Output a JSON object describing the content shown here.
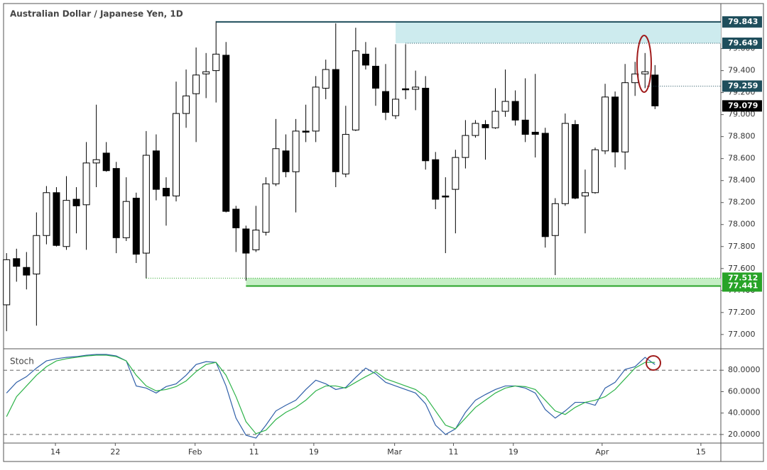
{
  "chart_data": [
    {
      "type": "candlestick",
      "title": "Australian Dollar / Japanese Yen, 1D",
      "xlim": [
        -0.3,
        71.6
      ],
      "xticks": [
        {
          "value": 4.9,
          "label": "14"
        },
        {
          "value": 10.9,
          "label": "22"
        },
        {
          "value": 18.9,
          "label": "Feb"
        },
        {
          "value": 24.8,
          "label": "11"
        },
        {
          "value": 30.8,
          "label": "19"
        },
        {
          "value": 38.9,
          "label": "Mar"
        },
        {
          "value": 44.8,
          "label": "11"
        },
        {
          "value": 50.8,
          "label": "19"
        },
        {
          "value": 59.7,
          "label": "Apr"
        },
        {
          "value": 69.6,
          "label": "15"
        }
      ],
      "ylim": [
        76.87,
        80.01
      ],
      "yticks": [
        {
          "value": 79.6,
          "label": "79.600"
        },
        {
          "value": 79.4,
          "label": "79.400"
        },
        {
          "value": 79.2,
          "label": "79.200"
        },
        {
          "value": 79.0,
          "label": "79.000"
        },
        {
          "value": 78.8,
          "label": "78.800"
        },
        {
          "value": 78.6,
          "label": "78.600"
        },
        {
          "value": 78.4,
          "label": "78.400"
        },
        {
          "value": 78.2,
          "label": "78.200"
        },
        {
          "value": 78.0,
          "label": "78.000"
        },
        {
          "value": 77.8,
          "label": "77.800"
        },
        {
          "value": 77.6,
          "label": "77.600"
        },
        {
          "value": 77.4,
          "label": "77.400"
        },
        {
          "value": 77.2,
          "label": "77.200"
        },
        {
          "value": 77.0,
          "label": "77.000"
        }
      ],
      "open": [
        77.27,
        77.69,
        77.61,
        77.55,
        77.9,
        78.29,
        77.8,
        78.23,
        78.18,
        78.56,
        78.65,
        78.51,
        77.88,
        78.24,
        77.74,
        78.67,
        78.33,
        78.26,
        79.01,
        79.19,
        79.37,
        79.4,
        79.54,
        78.14,
        77.96,
        77.77,
        77.93,
        78.37,
        78.67,
        78.48,
        78.85,
        78.85,
        79.24,
        79.41,
        78.46,
        78.86,
        79.55,
        79.44,
        79.21,
        78.99,
        79.235,
        79.23,
        79.24,
        78.59,
        78.26,
        78.32,
        78.61,
        78.81,
        78.91,
        78.88,
        79.03,
        79.12,
        78.95,
        78.84,
        78.83,
        77.9,
        78.19,
        78.91,
        78.26,
        78.29,
        78.67,
        79.16,
        78.66,
        79.29,
        79.37,
        79.36
      ],
      "high": [
        77.74,
        77.78,
        77.75,
        78.11,
        78.35,
        78.34,
        78.44,
        78.34,
        78.75,
        79.09,
        78.75,
        78.57,
        78.43,
        78.29,
        78.85,
        78.82,
        78.43,
        79.3,
        79.41,
        79.61,
        79.56,
        79.85,
        79.66,
        78.17,
        77.99,
        78.17,
        78.43,
        78.96,
        78.82,
        78.96,
        79.09,
        79.35,
        79.5,
        79.83,
        79.08,
        79.79,
        79.66,
        79.61,
        79.46,
        79.64,
        79.64,
        79.4,
        79.35,
        78.66,
        78.43,
        78.68,
        78.95,
        78.95,
        78.95,
        79.24,
        79.41,
        79.22,
        79.33,
        79.37,
        78.88,
        78.24,
        79.01,
        78.95,
        78.5,
        78.7,
        79.28,
        79.21,
        79.46,
        79.48,
        79.56,
        79.45
      ],
      "low": [
        77.03,
        77.48,
        77.41,
        77.08,
        77.82,
        77.8,
        77.77,
        77.92,
        77.77,
        78.34,
        78.48,
        77.74,
        77.85,
        77.65,
        77.51,
        78.22,
        77.99,
        78.21,
        78.88,
        78.75,
        79.15,
        79.11,
        78.11,
        77.75,
        77.49,
        77.75,
        77.9,
        78.35,
        78.43,
        78.11,
        78.75,
        78.75,
        79.14,
        78.34,
        78.43,
        78.85,
        79.41,
        79.08,
        78.95,
        78.96,
        79.14,
        79.04,
        78.5,
        78.14,
        77.74,
        77.92,
        78.51,
        78.79,
        78.59,
        78.87,
        78.98,
        78.9,
        78.75,
        78.61,
        77.79,
        77.54,
        78.17,
        78.23,
        77.92,
        78.28,
        78.64,
        78.52,
        78.5,
        79.17,
        79.24,
        79.05
      ],
      "close": [
        77.68,
        77.62,
        77.54,
        77.9,
        78.29,
        77.81,
        78.22,
        78.17,
        78.56,
        78.59,
        78.49,
        77.88,
        78.21,
        77.73,
        78.63,
        78.32,
        78.26,
        79.01,
        79.17,
        79.36,
        79.39,
        79.55,
        78.12,
        77.97,
        77.74,
        77.95,
        78.37,
        78.69,
        78.48,
        78.85,
        78.84,
        79.25,
        79.41,
        78.48,
        78.82,
        79.58,
        79.45,
        79.24,
        79.02,
        79.14,
        79.225,
        79.25,
        78.58,
        78.23,
        78.25,
        78.61,
        78.81,
        78.92,
        78.88,
        79.03,
        79.12,
        78.95,
        78.82,
        78.82,
        77.89,
        78.19,
        78.92,
        78.24,
        78.29,
        78.68,
        79.16,
        78.66,
        79.29,
        79.37,
        79.39,
        79.079
      ],
      "up_color": "#ffffff",
      "down_color": "#000000",
      "levels": [
        {
          "value": 79.843,
          "color": "#1f4e5c",
          "line": "solid",
          "from": 21
        },
        {
          "value": 79.649,
          "color": "#1f4e5c",
          "line": "dotted",
          "from": 40
        },
        {
          "value": 79.259,
          "color": "#1f4e5c",
          "line": "dotted",
          "from": 64
        },
        {
          "value": 79.079,
          "color": "#000000",
          "line": "none",
          "from": 65
        },
        {
          "value": 77.512,
          "color": "#27a327",
          "line": "dotted",
          "from": 14
        },
        {
          "value": 77.441,
          "color": "#27a327",
          "line": "solid",
          "from": 24
        }
      ],
      "zones": [
        {
          "levels": [
            0,
            1
          ],
          "from": 39,
          "color": "#cdebee"
        },
        {
          "levels": [
            4,
            5
          ],
          "from": 24,
          "color": "#c5efc5"
        }
      ]
    },
    {
      "type": "line",
      "title": "Stoch",
      "ylim": [
        12,
        100
      ],
      "yticks": [
        {
          "value": 80,
          "label": "80.0000"
        },
        {
          "value": 60,
          "label": "60.0000"
        },
        {
          "value": 40,
          "label": "40.0000"
        },
        {
          "value": 20,
          "label": "20.0000"
        }
      ],
      "bands": [
        80,
        20
      ],
      "series": [
        {
          "color": "#2f5fa8",
          "values": [
            58.7,
            68.7,
            74,
            82,
            88.7,
            90.7,
            92,
            92.7,
            94,
            94.7,
            94.7,
            93.3,
            88.7,
            65.3,
            63.3,
            58.7,
            64.7,
            67.3,
            75.3,
            85.3,
            88,
            87.3,
            65.3,
            35.3,
            19.3,
            16.7,
            28.7,
            42,
            47.3,
            52,
            62,
            70.7,
            67.3,
            62,
            64,
            73.3,
            82,
            76.7,
            68.7,
            65.3,
            62,
            58.7,
            48.7,
            28.7,
            20,
            25.3,
            40.7,
            52,
            57.3,
            62,
            65.3,
            65.3,
            63.3,
            58.7,
            43.3,
            35.3,
            42,
            50,
            50,
            47.3,
            63.3,
            68.7,
            80.7,
            83.3,
            92,
            85.3
          ]
        },
        {
          "color": "#2eb34a",
          "values": [
            36.7,
            55.3,
            65.3,
            75.3,
            83.3,
            88.7,
            90.7,
            92,
            93.3,
            94,
            94,
            92.7,
            88.7,
            75.3,
            65.3,
            60.7,
            62,
            64.7,
            70,
            78.7,
            85.3,
            87.3,
            75.3,
            55.3,
            32,
            20.7,
            24,
            34,
            40.7,
            45.3,
            52,
            60.7,
            65.3,
            65.3,
            63.3,
            68.7,
            74,
            78.7,
            72,
            68.7,
            65.3,
            62,
            55.3,
            42,
            28.7,
            25.3,
            35.3,
            45.3,
            52,
            58.7,
            63.3,
            65.3,
            64.7,
            62,
            52,
            42,
            38.7,
            45.3,
            50,
            52,
            55.3,
            62,
            72,
            82,
            87.3,
            87.3
          ]
        }
      ]
    }
  ]
}
